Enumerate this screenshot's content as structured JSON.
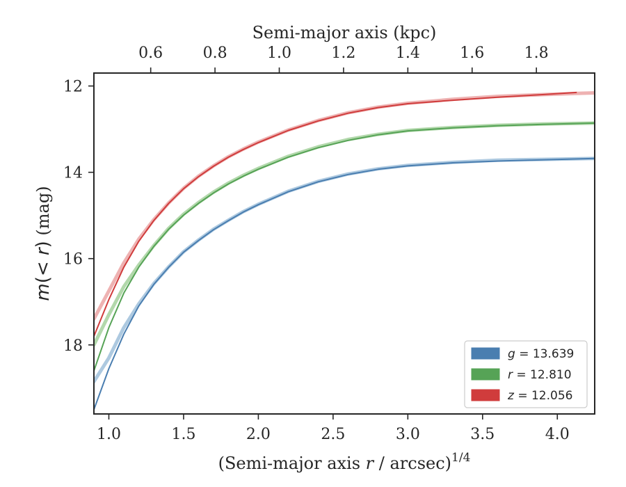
{
  "chart_data": {
    "type": "line",
    "title": "",
    "xlabel": "(Semi-major axis r / arcsec)^1/4",
    "xlabel_parts": {
      "prefix": "(Semi-major axis ",
      "var": "r",
      "mid": " / arcsec)",
      "sup": "1/4"
    },
    "ylabel": "m(< r) (mag)",
    "ylabel_parts": {
      "var": "m",
      "open": "(",
      "lt": "< ",
      "var2": "r",
      "close": ")",
      "unit": " (mag)"
    },
    "x2label": "Semi-major axis (kpc)",
    "xlim": [
      0.9,
      4.25
    ],
    "ylim": [
      19.6,
      11.7
    ],
    "y_inverted": true,
    "xticks": [
      1.0,
      1.5,
      2.0,
      2.5,
      3.0,
      3.5,
      4.0
    ],
    "xtick_labels": [
      "1.0",
      "1.5",
      "2.0",
      "2.5",
      "3.0",
      "3.5",
      "4.0"
    ],
    "yticks": [
      12,
      14,
      16,
      18
    ],
    "ytick_labels": [
      "12",
      "14",
      "16",
      "18"
    ],
    "x2ticks": [
      0.6,
      0.8,
      1.0,
      1.2,
      1.4,
      1.6,
      1.8
    ],
    "x2tick_labels": [
      "0.6",
      "0.8",
      "1.0",
      "1.2",
      "1.4",
      "1.6",
      "1.8"
    ],
    "x2_to_x": [
      1.28,
      1.71,
      2.14,
      2.57,
      3.0,
      3.43,
      3.86
    ],
    "grid": false,
    "legend_position": "lower-right",
    "series": [
      {
        "name": "g = 13.639",
        "band": "g",
        "total": "13.639",
        "color": "#4a7eb0",
        "band_color": "#9fbfdb",
        "x": [
          0.9,
          1.0,
          1.1,
          1.2,
          1.3,
          1.4,
          1.5,
          1.6,
          1.7,
          1.8,
          1.9,
          2.0,
          2.2,
          2.4,
          2.6,
          2.8,
          3.0,
          3.3,
          3.6,
          3.9,
          4.25
        ],
        "y": [
          19.5,
          18.55,
          17.75,
          17.1,
          16.6,
          16.2,
          15.85,
          15.58,
          15.33,
          15.12,
          14.92,
          14.75,
          14.45,
          14.22,
          14.05,
          13.93,
          13.85,
          13.78,
          13.74,
          13.71,
          13.68
        ],
        "y_band_upper": [
          18.85,
          18.3,
          17.6,
          17.05,
          16.58,
          16.19,
          15.84,
          15.57,
          15.32,
          15.11,
          14.91,
          14.74,
          14.44,
          14.21,
          14.04,
          13.92,
          13.84,
          13.77,
          13.72,
          13.7,
          13.68
        ]
      },
      {
        "name": "r = 12.810",
        "band": "r",
        "total": "12.810",
        "color": "#56a356",
        "band_color": "#a5d19c",
        "x": [
          0.9,
          1.0,
          1.1,
          1.2,
          1.3,
          1.4,
          1.5,
          1.6,
          1.7,
          1.8,
          1.9,
          2.0,
          2.2,
          2.4,
          2.6,
          2.8,
          3.0,
          3.3,
          3.6,
          3.9,
          4.25
        ],
        "y": [
          18.6,
          17.6,
          16.8,
          16.2,
          15.72,
          15.32,
          14.99,
          14.72,
          14.48,
          14.27,
          14.09,
          13.93,
          13.65,
          13.43,
          13.26,
          13.13,
          13.04,
          12.97,
          12.92,
          12.89,
          12.86
        ],
        "y_band_upper": [
          18.0,
          17.3,
          16.65,
          16.15,
          15.7,
          15.3,
          14.97,
          14.7,
          14.46,
          14.25,
          14.07,
          13.91,
          13.63,
          13.41,
          13.24,
          13.12,
          13.03,
          12.96,
          12.91,
          12.88,
          12.86
        ]
      },
      {
        "name": "z = 12.056",
        "band": "z",
        "total": "12.056",
        "color": "#d03c3c",
        "band_color": "#eba4a4",
        "x": [
          0.9,
          1.0,
          1.1,
          1.2,
          1.3,
          1.4,
          1.5,
          1.6,
          1.7,
          1.8,
          1.9,
          2.0,
          2.2,
          2.4,
          2.6,
          2.8,
          3.0,
          3.3,
          3.6,
          3.9,
          4.13
        ],
        "y": [
          17.8,
          16.95,
          16.2,
          15.6,
          15.12,
          14.72,
          14.38,
          14.1,
          13.86,
          13.65,
          13.47,
          13.31,
          13.03,
          12.81,
          12.63,
          12.5,
          12.41,
          12.33,
          12.26,
          12.2,
          12.15
        ],
        "y_band_upper": [
          17.4,
          16.75,
          16.1,
          15.55,
          15.1,
          14.71,
          14.37,
          14.09,
          13.85,
          13.64,
          13.46,
          13.3,
          13.02,
          12.8,
          12.62,
          12.49,
          12.4,
          12.31,
          12.24,
          12.2,
          12.17
        ],
        "band_x_end": 4.25,
        "band_y_end": 12.16
      }
    ]
  }
}
